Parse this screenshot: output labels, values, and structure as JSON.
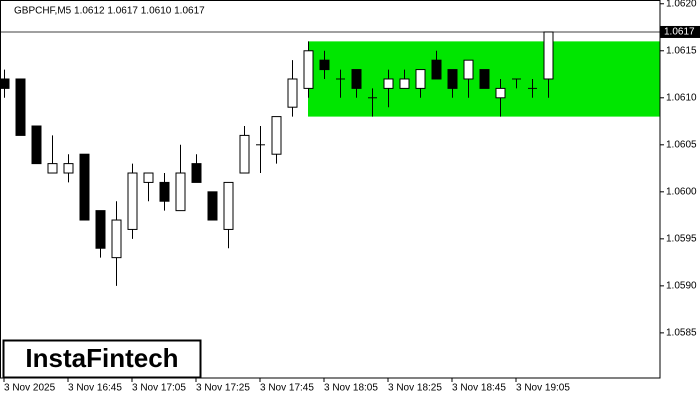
{
  "chart_data": {
    "type": "candlestick",
    "subtitle": "GBPCHF,M5  1.0612 1.0617 1.0610 1.0617",
    "logo": "InstaFintech",
    "categories": [
      "3 Nov 2025",
      null,
      null,
      null,
      "3 Nov 16:45",
      null,
      null,
      null,
      "3 Nov 17:05",
      null,
      null,
      null,
      "3 Nov 17:25",
      null,
      null,
      null,
      "3 Nov 17:45",
      null,
      null,
      null,
      "3 Nov 18:05",
      null,
      null,
      null,
      "3 Nov 18:25",
      null,
      null,
      null,
      "3 Nov 18:45",
      null,
      null,
      null,
      "3 Nov 19:05",
      null,
      null
    ],
    "open": [
      1.0612,
      1.0612,
      1.0607,
      1.0602,
      1.0602,
      1.0604,
      1.0598,
      1.0593,
      1.0596,
      1.0601,
      1.0601,
      1.0598,
      1.0603,
      1.06,
      1.0596,
      1.0602,
      1.0605,
      1.0604,
      1.0609,
      1.0611,
      1.0614,
      1.0612,
      1.0613,
      1.061,
      1.0611,
      1.0611,
      1.0611,
      1.0614,
      1.0613,
      1.0612,
      1.0613,
      1.061,
      1.0612,
      1.0611,
      1.0612
    ],
    "high": [
      1.0613,
      1.0612,
      1.0607,
      1.0606,
      1.0604,
      1.0604,
      1.0598,
      1.0599,
      1.0603,
      1.0602,
      1.0602,
      1.0605,
      1.0604,
      1.06,
      1.0601,
      1.0607,
      1.0607,
      1.0608,
      1.0614,
      1.0616,
      1.0615,
      1.0613,
      1.0613,
      1.0611,
      1.0613,
      1.0613,
      1.0613,
      1.0615,
      1.0613,
      1.0614,
      1.0613,
      1.0612,
      1.0612,
      1.0612,
      1.0617
    ],
    "low": [
      1.061,
      1.0606,
      1.0603,
      1.0602,
      1.0601,
      1.0597,
      1.0593,
      1.059,
      1.0595,
      1.0599,
      1.0598,
      1.0598,
      1.0601,
      1.0597,
      1.0594,
      1.0602,
      1.0602,
      1.0603,
      1.0608,
      1.061,
      1.0612,
      1.061,
      1.061,
      1.0608,
      1.0609,
      1.0611,
      1.061,
      1.0612,
      1.061,
      1.061,
      1.0611,
      1.0608,
      1.0611,
      1.061,
      1.061
    ],
    "close": [
      1.0611,
      1.0606,
      1.0603,
      1.0603,
      1.0603,
      1.0597,
      1.0594,
      1.0597,
      1.0602,
      1.0602,
      1.0599,
      1.0602,
      1.0601,
      1.0597,
      1.0601,
      1.0606,
      1.0605,
      1.0608,
      1.0612,
      1.0615,
      1.0613,
      1.0612,
      1.0611,
      1.061,
      1.0612,
      1.0612,
      1.0613,
      1.0612,
      1.0611,
      1.0614,
      1.0611,
      1.0611,
      1.0612,
      1.0611,
      1.0617
    ],
    "up_color": "#ffffff",
    "down_color": "#000000",
    "zone": {
      "from": 1.0608,
      "to": 1.0616,
      "start": 19,
      "color": "#00e600"
    },
    "current_price": 1.0617,
    "ylim": [
      1.05802,
      1.06204
    ],
    "yticks": [
      {
        "value": 1.062,
        "label": "1.0620"
      },
      1.0615,
      {
        "value": 1.061,
        "label": "1.0610"
      },
      1.0605,
      {
        "value": 1.06,
        "label": "1.0600"
      },
      1.0595,
      {
        "value": 1.059,
        "label": "1.0590"
      },
      1.0585
    ]
  }
}
